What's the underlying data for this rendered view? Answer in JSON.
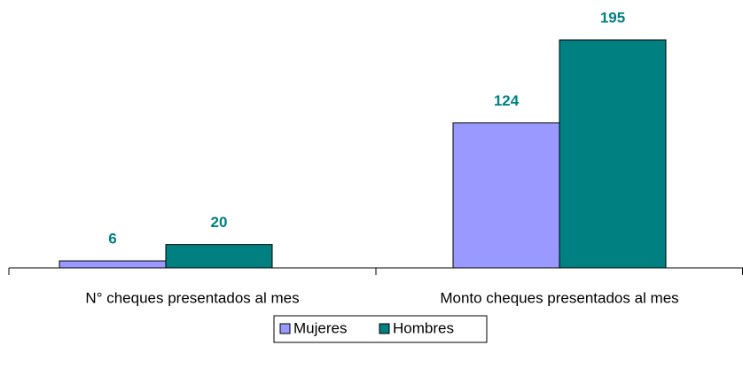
{
  "chart_data": {
    "type": "bar",
    "categories": [
      "N° cheques presentados al mes",
      "Monto cheques presentados al mes"
    ],
    "series": [
      {
        "name": "Mujeres",
        "color": "#9999ff",
        "values": [
          6,
          124
        ]
      },
      {
        "name": "Hombres",
        "color": "#008080",
        "values": [
          20,
          195
        ]
      }
    ],
    "legend": "bottom"
  }
}
